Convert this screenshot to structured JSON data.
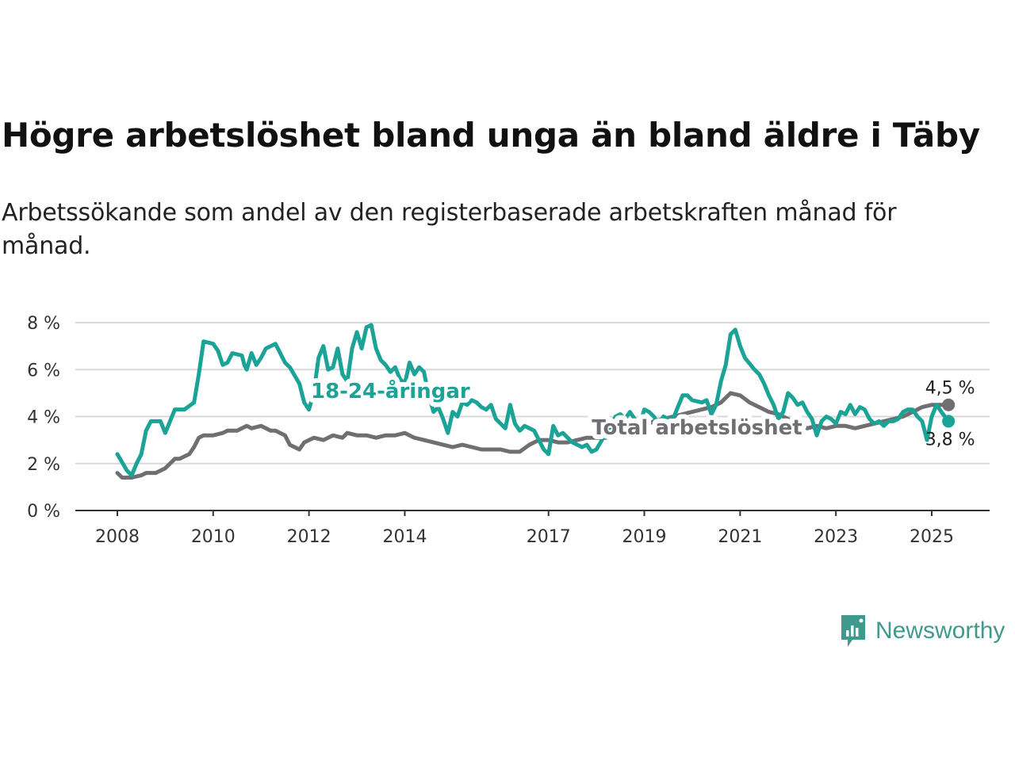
{
  "title": "Högre arbetslöshet bland unga än bland äldre i Täby",
  "subtitle": "Arbetssökande som andel av den registerbaserade arbetskraften månad för månad.",
  "brand": {
    "name": "Newsworthy",
    "icon": "newsworthy-logo-icon",
    "color": "#3f9a8e"
  },
  "chart_data": {
    "type": "line",
    "x_axis": {
      "ticks": [
        "2008",
        "2010",
        "2012",
        "2014",
        "2017",
        "2019",
        "2021",
        "2023",
        "2025"
      ],
      "range": [
        2007.75,
        2026.2
      ]
    },
    "y_axis": {
      "ticks": [
        "0 %",
        "2 %",
        "4 %",
        "6 %",
        "8 %"
      ],
      "range": [
        0,
        8
      ],
      "grid": true
    },
    "series": [
      {
        "name": "Total arbetslöshet",
        "color": "#6f6e73",
        "end_label": "4,5 %",
        "points": [
          [
            2008.0,
            1.6
          ],
          [
            2008.1,
            1.4
          ],
          [
            2008.3,
            1.4
          ],
          [
            2008.5,
            1.5
          ],
          [
            2008.6,
            1.6
          ],
          [
            2008.8,
            1.6
          ],
          [
            2009.0,
            1.8
          ],
          [
            2009.2,
            2.2
          ],
          [
            2009.3,
            2.2
          ],
          [
            2009.5,
            2.4
          ],
          [
            2009.6,
            2.7
          ],
          [
            2009.7,
            3.1
          ],
          [
            2009.8,
            3.2
          ],
          [
            2010.0,
            3.2
          ],
          [
            2010.2,
            3.3
          ],
          [
            2010.3,
            3.4
          ],
          [
            2010.5,
            3.4
          ],
          [
            2010.7,
            3.6
          ],
          [
            2010.8,
            3.5
          ],
          [
            2011.0,
            3.6
          ],
          [
            2011.2,
            3.4
          ],
          [
            2011.3,
            3.4
          ],
          [
            2011.5,
            3.2
          ],
          [
            2011.6,
            2.8
          ],
          [
            2011.8,
            2.6
          ],
          [
            2011.9,
            2.9
          ],
          [
            2012.1,
            3.1
          ],
          [
            2012.3,
            3.0
          ],
          [
            2012.5,
            3.2
          ],
          [
            2012.7,
            3.1
          ],
          [
            2012.8,
            3.3
          ],
          [
            2013.0,
            3.2
          ],
          [
            2013.2,
            3.2
          ],
          [
            2013.4,
            3.1
          ],
          [
            2013.6,
            3.2
          ],
          [
            2013.8,
            3.2
          ],
          [
            2014.0,
            3.3
          ],
          [
            2014.2,
            3.1
          ],
          [
            2014.4,
            3.0
          ],
          [
            2014.6,
            2.9
          ],
          [
            2014.8,
            2.8
          ],
          [
            2015.0,
            2.7
          ],
          [
            2015.2,
            2.8
          ],
          [
            2015.4,
            2.7
          ],
          [
            2015.6,
            2.6
          ],
          [
            2015.8,
            2.6
          ],
          [
            2016.0,
            2.6
          ],
          [
            2016.2,
            2.5
          ],
          [
            2016.4,
            2.5
          ],
          [
            2016.6,
            2.8
          ],
          [
            2016.8,
            3.0
          ],
          [
            2017.0,
            3.0
          ],
          [
            2017.2,
            2.9
          ],
          [
            2017.4,
            2.9
          ],
          [
            2017.6,
            3.0
          ],
          [
            2017.8,
            3.1
          ],
          [
            2018.0,
            3.1
          ],
          [
            2018.2,
            3.1
          ],
          [
            2018.4,
            3.2
          ],
          [
            2018.6,
            3.3
          ],
          [
            2018.8,
            3.3
          ],
          [
            2019.0,
            3.6
          ],
          [
            2019.2,
            3.8
          ],
          [
            2019.4,
            3.9
          ],
          [
            2019.6,
            4.0
          ],
          [
            2019.8,
            4.1
          ],
          [
            2020.0,
            4.2
          ],
          [
            2020.2,
            4.3
          ],
          [
            2020.4,
            4.4
          ],
          [
            2020.6,
            4.6
          ],
          [
            2020.8,
            5.0
          ],
          [
            2021.0,
            4.9
          ],
          [
            2021.2,
            4.6
          ],
          [
            2021.4,
            4.4
          ],
          [
            2021.6,
            4.2
          ],
          [
            2021.8,
            4.1
          ],
          [
            2022.0,
            3.9
          ],
          [
            2022.2,
            3.7
          ],
          [
            2022.4,
            3.5
          ],
          [
            2022.6,
            3.6
          ],
          [
            2022.8,
            3.5
          ],
          [
            2023.0,
            3.6
          ],
          [
            2023.2,
            3.6
          ],
          [
            2023.4,
            3.5
          ],
          [
            2023.6,
            3.6
          ],
          [
            2023.8,
            3.7
          ],
          [
            2024.0,
            3.8
          ],
          [
            2024.2,
            3.9
          ],
          [
            2024.4,
            4.0
          ],
          [
            2024.6,
            4.2
          ],
          [
            2024.8,
            4.4
          ],
          [
            2025.0,
            4.5
          ],
          [
            2025.2,
            4.5
          ],
          [
            2025.35,
            4.5
          ]
        ]
      },
      {
        "name": "18-24-åringar",
        "color": "#1aa396",
        "end_label": "3,8 %",
        "points": [
          [
            2008.0,
            2.4
          ],
          [
            2008.2,
            1.7
          ],
          [
            2008.3,
            1.5
          ],
          [
            2008.4,
            2.0
          ],
          [
            2008.5,
            2.4
          ],
          [
            2008.6,
            3.4
          ],
          [
            2008.7,
            3.8
          ],
          [
            2008.9,
            3.8
          ],
          [
            2009.0,
            3.3
          ],
          [
            2009.2,
            4.3
          ],
          [
            2009.4,
            4.3
          ],
          [
            2009.6,
            4.6
          ],
          [
            2009.7,
            5.8
          ],
          [
            2009.8,
            7.2
          ],
          [
            2010.0,
            7.1
          ],
          [
            2010.1,
            6.8
          ],
          [
            2010.2,
            6.2
          ],
          [
            2010.3,
            6.3
          ],
          [
            2010.4,
            6.7
          ],
          [
            2010.6,
            6.6
          ],
          [
            2010.65,
            6.2
          ],
          [
            2010.7,
            6.0
          ],
          [
            2010.8,
            6.7
          ],
          [
            2010.9,
            6.2
          ],
          [
            2011.0,
            6.5
          ],
          [
            2011.1,
            6.9
          ],
          [
            2011.3,
            7.1
          ],
          [
            2011.4,
            6.7
          ],
          [
            2011.5,
            6.3
          ],
          [
            2011.6,
            6.1
          ],
          [
            2011.8,
            5.4
          ],
          [
            2011.9,
            4.6
          ],
          [
            2012.0,
            4.3
          ],
          [
            2012.1,
            5.0
          ],
          [
            2012.2,
            6.5
          ],
          [
            2012.3,
            7.0
          ],
          [
            2012.4,
            6.0
          ],
          [
            2012.5,
            6.1
          ],
          [
            2012.6,
            6.9
          ],
          [
            2012.7,
            5.8
          ],
          [
            2012.8,
            5.5
          ],
          [
            2012.9,
            6.9
          ],
          [
            2013.0,
            7.6
          ],
          [
            2013.1,
            6.9
          ],
          [
            2013.2,
            7.8
          ],
          [
            2013.3,
            7.9
          ],
          [
            2013.4,
            6.9
          ],
          [
            2013.5,
            6.4
          ],
          [
            2013.6,
            6.2
          ],
          [
            2013.7,
            5.9
          ],
          [
            2013.8,
            6.1
          ],
          [
            2013.9,
            5.6
          ],
          [
            2014.0,
            5.4
          ],
          [
            2014.1,
            6.3
          ],
          [
            2014.2,
            5.8
          ],
          [
            2014.3,
            6.1
          ],
          [
            2014.4,
            5.9
          ],
          [
            2014.5,
            4.9
          ],
          [
            2014.6,
            4.2
          ],
          [
            2014.7,
            4.4
          ],
          [
            2014.8,
            3.9
          ],
          [
            2014.9,
            3.3
          ],
          [
            2015.0,
            4.2
          ],
          [
            2015.1,
            4.0
          ],
          [
            2015.2,
            4.6
          ],
          [
            2015.3,
            4.5
          ],
          [
            2015.4,
            4.7
          ],
          [
            2015.5,
            4.6
          ],
          [
            2015.6,
            4.4
          ],
          [
            2015.7,
            4.3
          ],
          [
            2015.8,
            4.5
          ],
          [
            2015.9,
            3.9
          ],
          [
            2016.0,
            3.7
          ],
          [
            2016.1,
            3.5
          ],
          [
            2016.2,
            4.5
          ],
          [
            2016.3,
            3.7
          ],
          [
            2016.4,
            3.4
          ],
          [
            2016.5,
            3.6
          ],
          [
            2016.7,
            3.4
          ],
          [
            2016.9,
            2.6
          ],
          [
            2017.0,
            2.4
          ],
          [
            2017.1,
            3.6
          ],
          [
            2017.2,
            3.2
          ],
          [
            2017.3,
            3.3
          ],
          [
            2017.5,
            2.9
          ],
          [
            2017.7,
            2.7
          ],
          [
            2017.8,
            2.8
          ],
          [
            2017.9,
            2.5
          ],
          [
            2018.0,
            2.6
          ],
          [
            2018.2,
            3.3
          ],
          [
            2018.3,
            3.6
          ],
          [
            2018.4,
            4.0
          ],
          [
            2018.5,
            4.1
          ],
          [
            2018.6,
            3.9
          ],
          [
            2018.7,
            4.2
          ],
          [
            2018.8,
            3.9
          ],
          [
            2018.9,
            3.6
          ],
          [
            2019.0,
            4.3
          ],
          [
            2019.1,
            4.2
          ],
          [
            2019.2,
            4.0
          ],
          [
            2019.3,
            3.7
          ],
          [
            2019.4,
            4.0
          ],
          [
            2019.5,
            3.9
          ],
          [
            2019.6,
            3.9
          ],
          [
            2019.7,
            4.4
          ],
          [
            2019.8,
            4.9
          ],
          [
            2019.9,
            4.9
          ],
          [
            2020.0,
            4.7
          ],
          [
            2020.2,
            4.6
          ],
          [
            2020.3,
            4.7
          ],
          [
            2020.4,
            4.1
          ],
          [
            2020.5,
            4.5
          ],
          [
            2020.6,
            5.5
          ],
          [
            2020.7,
            6.2
          ],
          [
            2020.8,
            7.5
          ],
          [
            2020.9,
            7.7
          ],
          [
            2021.0,
            7.0
          ],
          [
            2021.1,
            6.5
          ],
          [
            2021.3,
            6.0
          ],
          [
            2021.4,
            5.8
          ],
          [
            2021.5,
            5.4
          ],
          [
            2021.6,
            4.9
          ],
          [
            2021.7,
            4.5
          ],
          [
            2021.8,
            3.9
          ],
          [
            2021.9,
            4.2
          ],
          [
            2022.0,
            5.0
          ],
          [
            2022.1,
            4.8
          ],
          [
            2022.2,
            4.5
          ],
          [
            2022.3,
            4.6
          ],
          [
            2022.4,
            4.2
          ],
          [
            2022.5,
            3.9
          ],
          [
            2022.6,
            3.2
          ],
          [
            2022.7,
            3.8
          ],
          [
            2022.8,
            4.0
          ],
          [
            2022.9,
            3.9
          ],
          [
            2023.0,
            3.7
          ],
          [
            2023.1,
            4.2
          ],
          [
            2023.2,
            4.1
          ],
          [
            2023.3,
            4.5
          ],
          [
            2023.4,
            4.1
          ],
          [
            2023.5,
            4.4
          ],
          [
            2023.6,
            4.3
          ],
          [
            2023.7,
            3.9
          ],
          [
            2023.8,
            3.7
          ],
          [
            2023.9,
            3.8
          ],
          [
            2024.0,
            3.6
          ],
          [
            2024.1,
            3.8
          ],
          [
            2024.2,
            3.8
          ],
          [
            2024.3,
            3.9
          ],
          [
            2024.4,
            4.2
          ],
          [
            2024.5,
            4.3
          ],
          [
            2024.6,
            4.3
          ],
          [
            2024.7,
            4.0
          ],
          [
            2024.8,
            3.8
          ],
          [
            2024.9,
            3.0
          ],
          [
            2025.0,
            4.0
          ],
          [
            2025.1,
            4.5
          ],
          [
            2025.2,
            4.2
          ],
          [
            2025.35,
            3.8
          ]
        ]
      }
    ],
    "annotations": [
      {
        "text": "18-24-åringar",
        "x": 2013.7,
        "y": 5.1,
        "series": 1
      },
      {
        "text": "Total arbetslöshet",
        "x": 2020.1,
        "y": 3.55,
        "series": 0
      }
    ]
  }
}
